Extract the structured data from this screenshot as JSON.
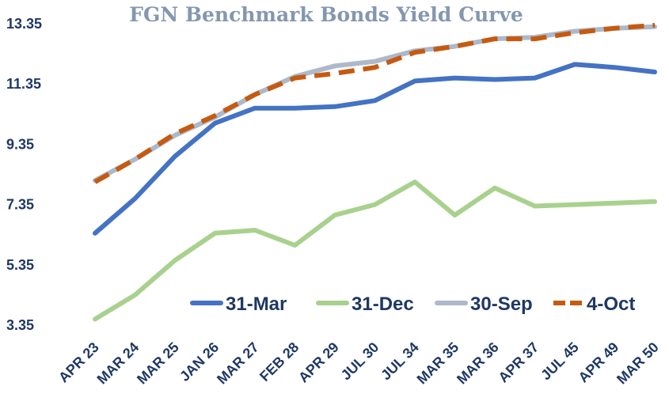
{
  "chart_data": {
    "type": "line",
    "title": "FGN Benchmark Bonds Yield Curve",
    "xlabel": "",
    "ylabel": "",
    "categories": [
      "APR 23",
      "MAR 24",
      "MAR 25",
      "JAN 26",
      "MAR 27",
      "FEB 28",
      "APR 29",
      "JUL 30",
      "JUL 34",
      "MAR 35",
      "MAR 36",
      "APR 37",
      "JUL 45",
      "APR 49",
      "MAR 50"
    ],
    "yticks": [
      "13.35",
      "11.35",
      "9.35",
      "7.35",
      "5.35",
      "3.35"
    ],
    "ylim": [
      3.35,
      13.35
    ],
    "grid": false,
    "legend": "bottom-right inside",
    "series": [
      {
        "name": "31-Mar",
        "color": "#4472c4",
        "dashed": false,
        "values": [
          6.4,
          7.55,
          8.95,
          10.05,
          10.55,
          10.55,
          10.6,
          10.8,
          11.45,
          11.55,
          11.5,
          11.55,
          12.0,
          11.9,
          11.75
        ]
      },
      {
        "name": "31-Dec",
        "color": "#a9d18e",
        "dashed": false,
        "values": [
          3.55,
          4.35,
          5.5,
          6.4,
          6.5,
          6.0,
          7.0,
          7.35,
          8.1,
          7.0,
          7.9,
          7.3,
          7.35,
          7.4,
          7.45
        ]
      },
      {
        "name": "30-Sep",
        "color": "#adb9ca",
        "dashed": false,
        "values": [
          8.15,
          8.85,
          9.65,
          10.25,
          11.0,
          11.6,
          11.95,
          12.1,
          12.45,
          12.6,
          12.85,
          12.9,
          13.1,
          13.2,
          13.25
        ]
      },
      {
        "name": "4-Oct",
        "color": "#c55a11",
        "dashed": true,
        "values": [
          8.1,
          8.85,
          9.7,
          10.3,
          11.0,
          11.55,
          11.7,
          11.9,
          12.4,
          12.6,
          12.85,
          12.85,
          13.05,
          13.2,
          13.3
        ]
      }
    ]
  }
}
